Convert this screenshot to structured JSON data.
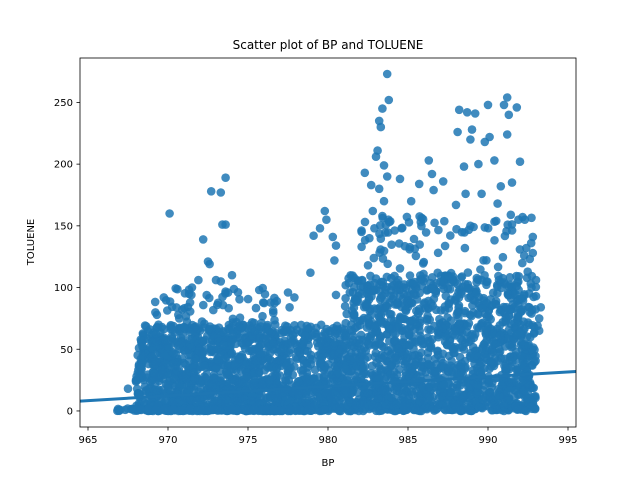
{
  "chart_data": {
    "type": "scatter",
    "title": "Scatter plot of BP and TOLUENE",
    "xlabel": "BP",
    "ylabel": "TOLUENE",
    "xlim": [
      964.5,
      995.5
    ],
    "ylim": [
      -13,
      286
    ],
    "x_ticks": [
      965,
      970,
      975,
      980,
      985,
      990,
      995
    ],
    "y_ticks": [
      0,
      50,
      100,
      150,
      200,
      250
    ],
    "grid": false,
    "legend": "none",
    "point_color": "#1f77b4",
    "regression_line": {
      "x": [
        964.5,
        995.5
      ],
      "y": [
        8.0,
        32.0
      ]
    },
    "clusters": [
      {
        "x_range": [
          968,
          981
        ],
        "y_range": [
          0,
          70
        ],
        "count": 1300
      },
      {
        "x_range": [
          969,
          977
        ],
        "y_range": [
          0,
          100
        ],
        "count": 250
      },
      {
        "x_range": [
          981,
          993
        ],
        "y_range": [
          0,
          110
        ],
        "count": 1300
      },
      {
        "x_range": [
          982,
          993
        ],
        "y_range": [
          0,
          160
        ],
        "count": 300
      },
      {
        "x_range": [
          966.5,
          980
        ],
        "y_range": [
          0,
          2
        ],
        "count": 120
      }
    ],
    "points": [
      {
        "x": 983.7,
        "y": 273
      },
      {
        "x": 991.2,
        "y": 254
      },
      {
        "x": 983.8,
        "y": 252
      },
      {
        "x": 990.0,
        "y": 248
      },
      {
        "x": 991.0,
        "y": 248
      },
      {
        "x": 991.8,
        "y": 246
      },
      {
        "x": 983.4,
        "y": 245
      },
      {
        "x": 988.2,
        "y": 244
      },
      {
        "x": 988.7,
        "y": 242
      },
      {
        "x": 989.2,
        "y": 241
      },
      {
        "x": 991.3,
        "y": 240
      },
      {
        "x": 983.2,
        "y": 235
      },
      {
        "x": 983.3,
        "y": 230
      },
      {
        "x": 989.0,
        "y": 228
      },
      {
        "x": 988.1,
        "y": 226
      },
      {
        "x": 991.2,
        "y": 224
      },
      {
        "x": 990.1,
        "y": 222
      },
      {
        "x": 988.9,
        "y": 220
      },
      {
        "x": 989.8,
        "y": 218
      },
      {
        "x": 983.1,
        "y": 211
      },
      {
        "x": 983.0,
        "y": 206
      },
      {
        "x": 986.3,
        "y": 203
      },
      {
        "x": 990.4,
        "y": 203
      },
      {
        "x": 992.0,
        "y": 202
      },
      {
        "x": 983.5,
        "y": 199
      },
      {
        "x": 988.5,
        "y": 198
      },
      {
        "x": 989.4,
        "y": 200
      },
      {
        "x": 982.3,
        "y": 193
      },
      {
        "x": 986.5,
        "y": 192
      },
      {
        "x": 983.7,
        "y": 190
      },
      {
        "x": 973.6,
        "y": 189
      },
      {
        "x": 984.5,
        "y": 188
      },
      {
        "x": 987.2,
        "y": 186
      },
      {
        "x": 991.5,
        "y": 185
      },
      {
        "x": 985.7,
        "y": 184
      },
      {
        "x": 982.7,
        "y": 183
      },
      {
        "x": 990.8,
        "y": 182
      },
      {
        "x": 983.2,
        "y": 180
      },
      {
        "x": 986.6,
        "y": 179
      },
      {
        "x": 972.7,
        "y": 178
      },
      {
        "x": 973.3,
        "y": 177
      },
      {
        "x": 988.6,
        "y": 176
      },
      {
        "x": 989.6,
        "y": 176
      },
      {
        "x": 983.5,
        "y": 170
      },
      {
        "x": 985.2,
        "y": 170
      },
      {
        "x": 990.6,
        "y": 168
      },
      {
        "x": 988.0,
        "y": 167
      },
      {
        "x": 982.8,
        "y": 162
      },
      {
        "x": 979.8,
        "y": 162
      },
      {
        "x": 970.1,
        "y": 160
      },
      {
        "x": 979.9,
        "y": 155
      },
      {
        "x": 983.4,
        "y": 158
      },
      {
        "x": 985.8,
        "y": 153
      },
      {
        "x": 991.9,
        "y": 155
      },
      {
        "x": 992.3,
        "y": 155
      },
      {
        "x": 973.6,
        "y": 151
      },
      {
        "x": 973.4,
        "y": 151
      },
      {
        "x": 979.5,
        "y": 148
      },
      {
        "x": 984.6,
        "y": 148
      },
      {
        "x": 988.9,
        "y": 150
      },
      {
        "x": 992.8,
        "y": 141
      },
      {
        "x": 980.3,
        "y": 141
      },
      {
        "x": 979.1,
        "y": 142
      },
      {
        "x": 972.2,
        "y": 139
      },
      {
        "x": 980.5,
        "y": 134
      },
      {
        "x": 992.7,
        "y": 136
      },
      {
        "x": 982.1,
        "y": 133
      },
      {
        "x": 985.1,
        "y": 131
      },
      {
        "x": 992.8,
        "y": 128
      },
      {
        "x": 972.5,
        "y": 121
      },
      {
        "x": 980.4,
        "y": 122
      },
      {
        "x": 972.6,
        "y": 119
      },
      {
        "x": 982.5,
        "y": 118
      },
      {
        "x": 978.9,
        "y": 112
      },
      {
        "x": 974.0,
        "y": 110
      },
      {
        "x": 971.9,
        "y": 106
      },
      {
        "x": 973.0,
        "y": 106
      },
      {
        "x": 993.0,
        "y": 106
      },
      {
        "x": 973.3,
        "y": 105
      },
      {
        "x": 971.5,
        "y": 100
      },
      {
        "x": 975.7,
        "y": 98
      },
      {
        "x": 977.5,
        "y": 96
      },
      {
        "x": 977.9,
        "y": 92
      },
      {
        "x": 980.5,
        "y": 94
      },
      {
        "x": 993.0,
        "y": 93
      },
      {
        "x": 976.8,
        "y": 89
      },
      {
        "x": 981.8,
        "y": 89
      },
      {
        "x": 993.3,
        "y": 84
      },
      {
        "x": 977.6,
        "y": 84
      },
      {
        "x": 970.7,
        "y": 75
      },
      {
        "x": 969.0,
        "y": 44
      },
      {
        "x": 968.3,
        "y": 42
      },
      {
        "x": 993.2,
        "y": 75
      },
      {
        "x": 993.1,
        "y": 69
      },
      {
        "x": 993.2,
        "y": 65
      },
      {
        "x": 991.5,
        "y": 23
      },
      {
        "x": 991.0,
        "y": 4
      },
      {
        "x": 991.0,
        "y": 0
      },
      {
        "x": 967.5,
        "y": 18
      },
      {
        "x": 968.0,
        "y": 25
      }
    ]
  }
}
